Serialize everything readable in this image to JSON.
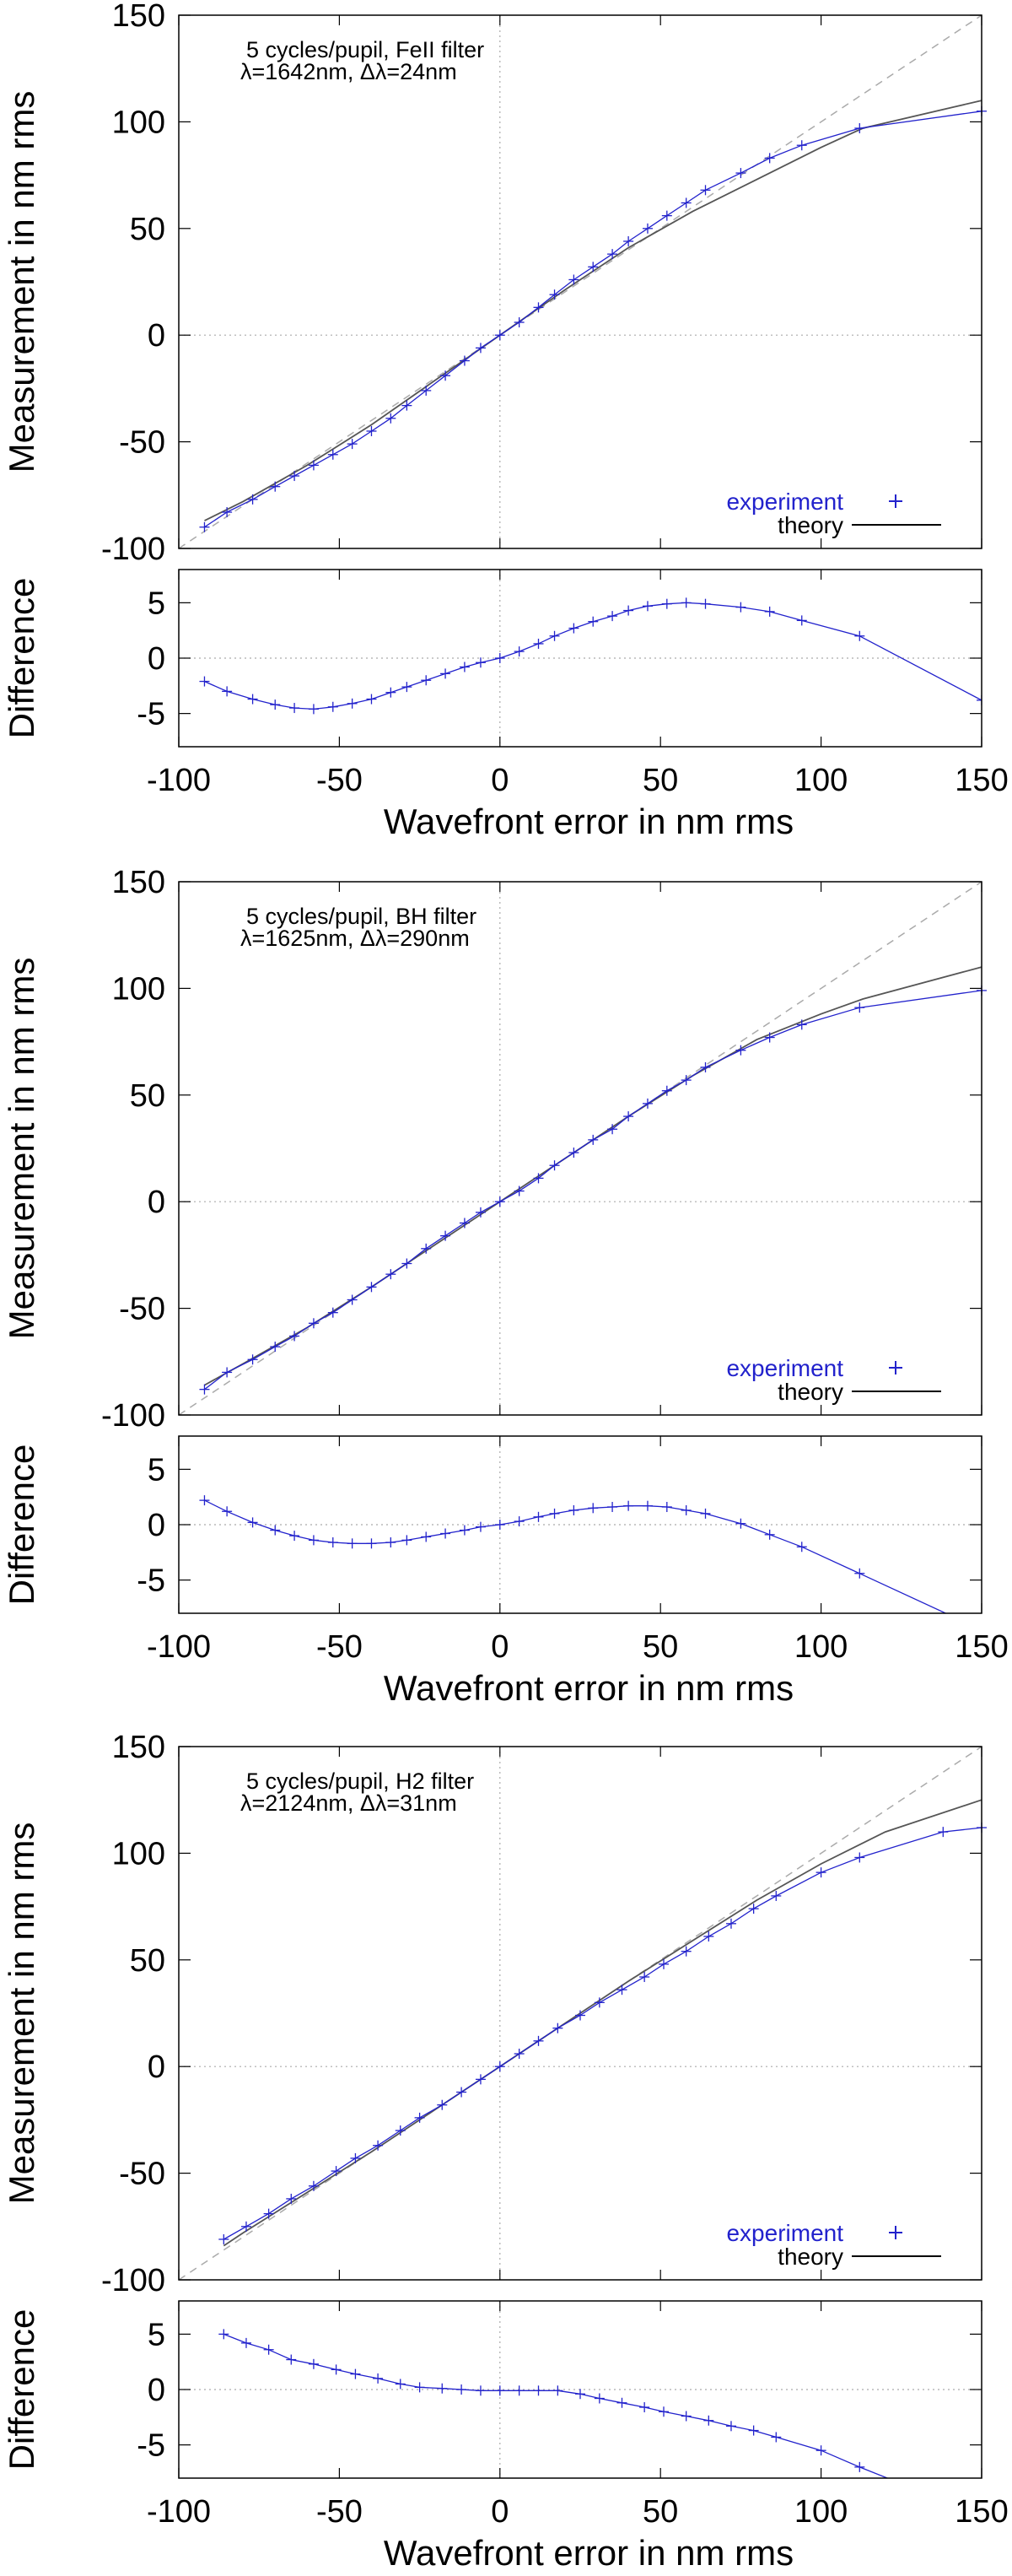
{
  "figure": {
    "colors": {
      "axis": "#000000",
      "experiment": "#2222cc",
      "theory": "#555555",
      "ideal": "#aaaaaa",
      "zero_line": "#aaaaaa"
    }
  },
  "chart_data": [
    {
      "type": "line",
      "annotation": [
        "5 cycles/pupil, FeII filter",
        "λ=1642nm, Δλ=24nm"
      ],
      "legend": {
        "experiment": "experiment",
        "theory": "theory",
        "placement": "bottom-right"
      },
      "main": {
        "ylabel": "Measurement in nm rms",
        "xlim": [
          -100,
          150
        ],
        "ylim": [
          -100,
          150
        ],
        "xticks": [
          -100,
          -50,
          0,
          50,
          100,
          150
        ],
        "yticks": [
          -100,
          -50,
          0,
          50,
          100,
          150
        ],
        "ideal": {
          "x": [
            -100,
            150
          ],
          "y": [
            -100,
            150
          ]
        },
        "theory": {
          "x": [
            -92,
            -80,
            -60,
            -40,
            -20,
            0,
            20,
            40,
            60,
            80,
            100,
            113,
            150
          ],
          "y": [
            -87,
            -78,
            -61,
            -42,
            -21,
            0,
            21,
            41,
            58,
            73,
            88,
            97,
            110
          ]
        },
        "experiment": {
          "x": [
            -92,
            -85,
            -77,
            -70,
            -64,
            -58,
            -52,
            -46,
            -40,
            -34,
            -29,
            -23,
            -17,
            -11,
            -6,
            0,
            6,
            12,
            17,
            23,
            29,
            35,
            40,
            46,
            52,
            58,
            64,
            75,
            84,
            94,
            112,
            150
          ],
          "y": [
            -90,
            -83,
            -77,
            -71,
            -66,
            -61,
            -56,
            -51,
            -45,
            -39,
            -33,
            -26,
            -19,
            -12,
            -6,
            0,
            6,
            13,
            19,
            26,
            32,
            38,
            44,
            50,
            56,
            62,
            68,
            76,
            83,
            89,
            97,
            105
          ]
        }
      },
      "diff": {
        "ylabel": "Difference",
        "ylim": [
          -8,
          8
        ],
        "yticks": [
          -5,
          0,
          5
        ],
        "x": [
          -92,
          -85,
          -77,
          -70,
          -64,
          -58,
          -52,
          -46,
          -40,
          -34,
          -29,
          -23,
          -17,
          -11,
          -6,
          0,
          6,
          12,
          17,
          23,
          29,
          35,
          40,
          46,
          52,
          58,
          64,
          75,
          84,
          94,
          112,
          150
        ],
        "y": [
          -2.1,
          -3.0,
          -3.7,
          -4.2,
          -4.5,
          -4.6,
          -4.4,
          -4.1,
          -3.7,
          -3.1,
          -2.6,
          -2.0,
          -1.4,
          -0.8,
          -0.4,
          0,
          0.6,
          1.3,
          2.0,
          2.7,
          3.3,
          3.8,
          4.3,
          4.7,
          4.9,
          5.0,
          4.9,
          4.6,
          4.2,
          3.4,
          2.0,
          -3.8
        ]
      },
      "xlabel": "Wavefront error in nm rms",
      "xticks": [
        -100,
        -50,
        0,
        50,
        100,
        150
      ]
    },
    {
      "type": "line",
      "annotation": [
        "5 cycles/pupil, BH filter",
        "λ=1625nm, Δλ=290nm"
      ],
      "legend": {
        "experiment": "experiment",
        "theory": "theory",
        "placement": "bottom-right"
      },
      "main": {
        "ylabel": "Measurement in nm rms",
        "xlim": [
          -100,
          150
        ],
        "ylim": [
          -100,
          150
        ],
        "xticks": [
          -100,
          -50,
          0,
          50,
          100,
          150
        ],
        "yticks": [
          -100,
          -50,
          0,
          50,
          100,
          150
        ],
        "ideal": {
          "x": [
            -100,
            150
          ],
          "y": [
            -100,
            150
          ]
        },
        "theory": {
          "x": [
            -92,
            -80,
            -60,
            -40,
            -20,
            0,
            20,
            40,
            60,
            80,
            100,
            113,
            150
          ],
          "y": [
            -86,
            -76,
            -59,
            -40,
            -20,
            0,
            20,
            40,
            59,
            76,
            88,
            95,
            110
          ]
        },
        "experiment": {
          "x": [
            -92,
            -85,
            -77,
            -70,
            -64,
            -58,
            -52,
            -46,
            -40,
            -34,
            -29,
            -23,
            -17,
            -11,
            -6,
            0,
            6,
            12,
            17,
            23,
            29,
            35,
            40,
            46,
            52,
            58,
            64,
            75,
            84,
            94,
            112,
            150
          ],
          "y": [
            -88,
            -80,
            -74,
            -68,
            -63,
            -57,
            -52,
            -46,
            -40,
            -34,
            -29,
            -22,
            -16,
            -10,
            -5,
            0,
            5,
            11,
            17,
            23,
            29,
            34,
            40,
            46,
            52,
            57,
            63,
            71,
            77,
            83,
            91,
            99
          ]
        }
      },
      "diff": {
        "ylabel": "Difference",
        "ylim": [
          -8,
          8
        ],
        "yticks": [
          -5,
          0,
          5
        ],
        "x": [
          -92,
          -85,
          -77,
          -70,
          -64,
          -58,
          -52,
          -46,
          -40,
          -34,
          -29,
          -23,
          -17,
          -11,
          -6,
          0,
          6,
          12,
          17,
          23,
          29,
          35,
          40,
          46,
          52,
          58,
          64,
          75,
          84,
          94,
          112,
          150
        ],
        "y": [
          2.2,
          1.2,
          0.2,
          -0.5,
          -1.0,
          -1.4,
          -1.6,
          -1.7,
          -1.7,
          -1.6,
          -1.4,
          -1.1,
          -0.8,
          -0.5,
          -0.2,
          0,
          0.3,
          0.7,
          1.0,
          1.3,
          1.5,
          1.6,
          1.7,
          1.7,
          1.6,
          1.3,
          1.0,
          0.1,
          -0.9,
          -2.0,
          -4.4,
          -9.5
        ]
      },
      "xlabel": "Wavefront error in nm rms",
      "xticks": [
        -100,
        -50,
        0,
        50,
        100,
        150
      ]
    },
    {
      "type": "line",
      "annotation": [
        "5 cycles/pupil, H2 filter",
        "λ=2124nm, Δλ=31nm"
      ],
      "legend": {
        "experiment": "experiment",
        "theory": "theory",
        "placement": "bottom-right"
      },
      "main": {
        "ylabel": "Measurement in nm rms",
        "xlim": [
          -100,
          150
        ],
        "ylim": [
          -100,
          150
        ],
        "xticks": [
          -100,
          -50,
          0,
          50,
          100,
          150
        ],
        "yticks": [
          -100,
          -50,
          0,
          50,
          100,
          150
        ],
        "ideal": {
          "x": [
            -100,
            150
          ],
          "y": [
            -100,
            150
          ]
        },
        "theory": {
          "x": [
            -86,
            -80,
            -60,
            -40,
            -20,
            0,
            20,
            40,
            60,
            80,
            100,
            120,
            150
          ],
          "y": [
            -84,
            -78,
            -59,
            -40,
            -20,
            0,
            20,
            40,
            59,
            78,
            95,
            110,
            125
          ]
        },
        "experiment": {
          "x": [
            -86,
            -79,
            -72,
            -65,
            -58,
            -51,
            -45,
            -38,
            -31,
            -25,
            -18,
            -12,
            -6,
            0,
            6,
            12,
            18,
            25,
            31,
            38,
            45,
            51,
            58,
            65,
            72,
            79,
            86,
            100,
            112,
            138,
            150
          ],
          "y": [
            -81,
            -75,
            -69,
            -62,
            -56,
            -49,
            -43,
            -37,
            -30,
            -24,
            -18,
            -12,
            -6,
            0,
            6,
            12,
            18,
            24,
            30,
            36,
            42,
            48,
            54,
            61,
            67,
            74,
            80,
            91,
            98,
            110,
            112
          ]
        }
      },
      "diff": {
        "ylabel": "Difference",
        "ylim": [
          -8,
          8
        ],
        "yticks": [
          -5,
          0,
          5
        ],
        "x": [
          -86,
          -79,
          -72,
          -65,
          -58,
          -51,
          -45,
          -38,
          -31,
          -25,
          -18,
          -12,
          -6,
          0,
          6,
          12,
          18,
          25,
          31,
          38,
          45,
          51,
          58,
          65,
          72,
          79,
          86,
          100,
          112,
          138,
          150
        ],
        "y": [
          5.0,
          4.2,
          3.6,
          2.7,
          2.3,
          1.8,
          1.4,
          1.0,
          0.5,
          0.2,
          0.1,
          0.0,
          -0.1,
          -0.1,
          -0.1,
          -0.1,
          -0.1,
          -0.4,
          -0.8,
          -1.2,
          -1.6,
          -2.0,
          -2.4,
          -2.8,
          -3.3,
          -3.7,
          -4.3,
          -5.5,
          -7.0,
          -10.0,
          -12.0
        ]
      },
      "xlabel": "Wavefront error in nm rms",
      "xticks": [
        -100,
        -50,
        0,
        50,
        100,
        150
      ]
    }
  ]
}
